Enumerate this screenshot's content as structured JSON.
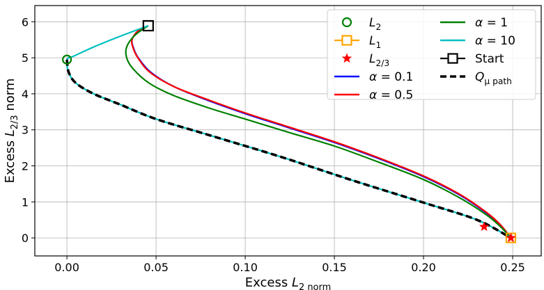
{
  "chart_data": {
    "type": "line",
    "xlabel": "Excess L_2 norm",
    "ylabel": "Excess L_{2/3} norm",
    "xlim": [
      -0.018,
      0.266
    ],
    "ylim": [
      -0.5,
      6.45
    ],
    "x_ticks": [
      0.0,
      0.05,
      0.1,
      0.15,
      0.2,
      0.25
    ],
    "x_tick_labels": [
      "0.00",
      "0.05",
      "0.10",
      "0.15",
      "0.20",
      "0.25"
    ],
    "y_ticks": [
      0,
      1,
      2,
      3,
      4,
      5,
      6
    ],
    "y_tick_labels": [
      "0",
      "1",
      "2",
      "3",
      "4",
      "5",
      "6"
    ],
    "grid": true,
    "legend_position": "top-right",
    "legend": [
      {
        "label": "L_2",
        "kind": "marker-circle",
        "color": "#008000"
      },
      {
        "label": "L_1",
        "kind": "line-square",
        "color": "#ffa500"
      },
      {
        "label": "L_{2/3}",
        "kind": "marker-star",
        "color": "#ff0000"
      },
      {
        "label": "α = 0.1",
        "kind": "line",
        "color": "#0000ff"
      },
      {
        "label": "α = 0.5",
        "kind": "line",
        "color": "#ff0000"
      },
      {
        "label": "α = 1",
        "kind": "line",
        "color": "#008000"
      },
      {
        "label": "α = 10",
        "kind": "line",
        "color": "#00bfbf"
      },
      {
        "label": "Start",
        "kind": "line-square",
        "color": "#000000"
      },
      {
        "label": "Q_μ path",
        "kind": "dashed",
        "color": "#000000"
      }
    ],
    "series": [
      {
        "name": "α = 0.1",
        "color": "#0000ff",
        "width": 2.2,
        "dash": "",
        "points": [
          [
            0.0456,
            5.89
          ],
          [
            0.04,
            5.75
          ],
          [
            0.0365,
            5.5
          ],
          [
            0.0375,
            5.25
          ],
          [
            0.04,
            5.0
          ],
          [
            0.047,
            4.6
          ],
          [
            0.06,
            4.2
          ],
          [
            0.08,
            3.8
          ],
          [
            0.1,
            3.45
          ],
          [
            0.125,
            3.05
          ],
          [
            0.15,
            2.65
          ],
          [
            0.175,
            2.2
          ],
          [
            0.2,
            1.7
          ],
          [
            0.22,
            1.2
          ],
          [
            0.235,
            0.7
          ],
          [
            0.243,
            0.35
          ],
          [
            0.249,
            0.0
          ]
        ]
      },
      {
        "name": "α = 0.5",
        "color": "#ff0000",
        "width": 2.2,
        "dash": "",
        "points": [
          [
            0.0456,
            5.89
          ],
          [
            0.04,
            5.75
          ],
          [
            0.0365,
            5.5
          ],
          [
            0.0373,
            5.25
          ],
          [
            0.0398,
            5.0
          ],
          [
            0.0465,
            4.6
          ],
          [
            0.06,
            4.2
          ],
          [
            0.08,
            3.82
          ],
          [
            0.1,
            3.47
          ],
          [
            0.125,
            3.07
          ],
          [
            0.15,
            2.67
          ],
          [
            0.175,
            2.22
          ],
          [
            0.2,
            1.72
          ],
          [
            0.22,
            1.22
          ],
          [
            0.235,
            0.72
          ],
          [
            0.243,
            0.37
          ],
          [
            0.249,
            0.0
          ]
        ]
      },
      {
        "name": "α = 1",
        "color": "#008000",
        "width": 2.2,
        "dash": "",
        "points": [
          [
            0.0456,
            5.89
          ],
          [
            0.038,
            5.62
          ],
          [
            0.0335,
            5.3
          ],
          [
            0.0335,
            5.0
          ],
          [
            0.037,
            4.7
          ],
          [
            0.046,
            4.3
          ],
          [
            0.06,
            3.95
          ],
          [
            0.08,
            3.6
          ],
          [
            0.1,
            3.3
          ],
          [
            0.125,
            2.92
          ],
          [
            0.15,
            2.55
          ],
          [
            0.175,
            2.1
          ],
          [
            0.2,
            1.62
          ],
          [
            0.22,
            1.12
          ],
          [
            0.235,
            0.65
          ],
          [
            0.243,
            0.32
          ],
          [
            0.249,
            0.0
          ]
        ]
      },
      {
        "name": "α = 10",
        "color": "#00bfbf",
        "width": 2.2,
        "dash": "",
        "points": [
          [
            0.0456,
            5.89
          ],
          [
            0.03,
            5.6
          ],
          [
            0.015,
            5.3
          ],
          [
            0.004,
            5.05
          ],
          [
            0.0,
            4.95
          ],
          [
            0.001,
            4.6
          ],
          [
            0.005,
            4.3
          ],
          [
            0.015,
            4.0
          ],
          [
            0.03,
            3.7
          ],
          [
            0.05,
            3.3
          ],
          [
            0.08,
            2.85
          ],
          [
            0.12,
            2.25
          ],
          [
            0.16,
            1.6
          ],
          [
            0.2,
            0.98
          ],
          [
            0.23,
            0.5
          ],
          [
            0.249,
            0.0
          ]
        ]
      },
      {
        "name": "Q_μ path",
        "color": "#000000",
        "width": 3.6,
        "dash": "9,5",
        "points": [
          [
            0.0,
            4.95
          ],
          [
            0.001,
            4.6
          ],
          [
            0.005,
            4.3
          ],
          [
            0.015,
            4.0
          ],
          [
            0.03,
            3.7
          ],
          [
            0.05,
            3.3
          ],
          [
            0.08,
            2.85
          ],
          [
            0.12,
            2.25
          ],
          [
            0.16,
            1.6
          ],
          [
            0.2,
            0.98
          ],
          [
            0.23,
            0.5
          ],
          [
            0.249,
            0.0
          ]
        ]
      }
    ],
    "markers": [
      {
        "name": "L_2",
        "shape": "circle",
        "color": "#008000",
        "x": 0.0,
        "y": 4.95
      },
      {
        "name": "L_1",
        "shape": "square",
        "color": "#ffa500",
        "x": 0.249,
        "y": 0.0
      },
      {
        "name": "L_{2/3}",
        "shape": "star",
        "color": "#ff0000",
        "x": 0.234,
        "y": 0.31
      },
      {
        "name": "L_{2/3}",
        "shape": "star",
        "color": "#ff0000",
        "x": 0.249,
        "y": 0.0
      },
      {
        "name": "Start",
        "shape": "square",
        "color": "#000000",
        "x": 0.0456,
        "y": 5.89
      }
    ]
  }
}
